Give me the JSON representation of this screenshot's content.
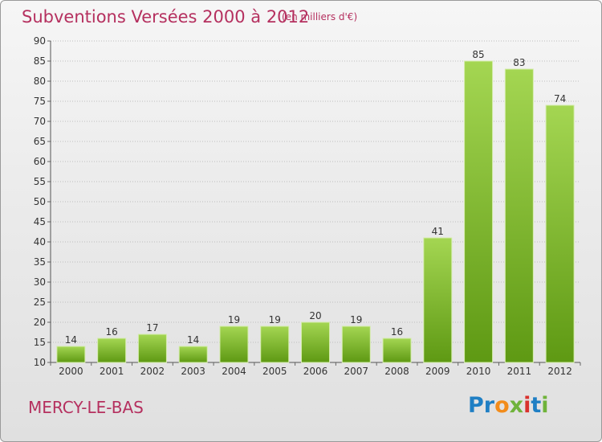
{
  "header": {
    "title": "Subventions Versées 2000 à 2012",
    "unit": "(en milliers d'€)"
  },
  "footer": {
    "commune": "MERCY-LE-BAS",
    "logo": [
      "Pr",
      "o",
      "x",
      "i",
      "t",
      "i"
    ]
  },
  "colors": {
    "title": "#b5305f",
    "bar_light": "#9fd24a",
    "bar_dark": "#5f9b14",
    "grid": "#bdbdbd"
  },
  "chart_data": {
    "type": "bar",
    "title": "Subventions Versées 2000 à 2012",
    "subtitle": "(en milliers d'€)",
    "xlabel": "",
    "ylabel": "",
    "categories": [
      "2000",
      "2001",
      "2002",
      "2003",
      "2004",
      "2005",
      "2006",
      "2007",
      "2008",
      "2009",
      "2010",
      "2011",
      "2012"
    ],
    "values": [
      14,
      16,
      17,
      14,
      19,
      19,
      20,
      19,
      16,
      41,
      85,
      83,
      74
    ],
    "ylim": [
      10,
      90
    ],
    "yticks": [
      10,
      15,
      20,
      25,
      30,
      35,
      40,
      45,
      50,
      55,
      60,
      65,
      70,
      75,
      80,
      85,
      90
    ],
    "grid": true,
    "legend": "none"
  }
}
